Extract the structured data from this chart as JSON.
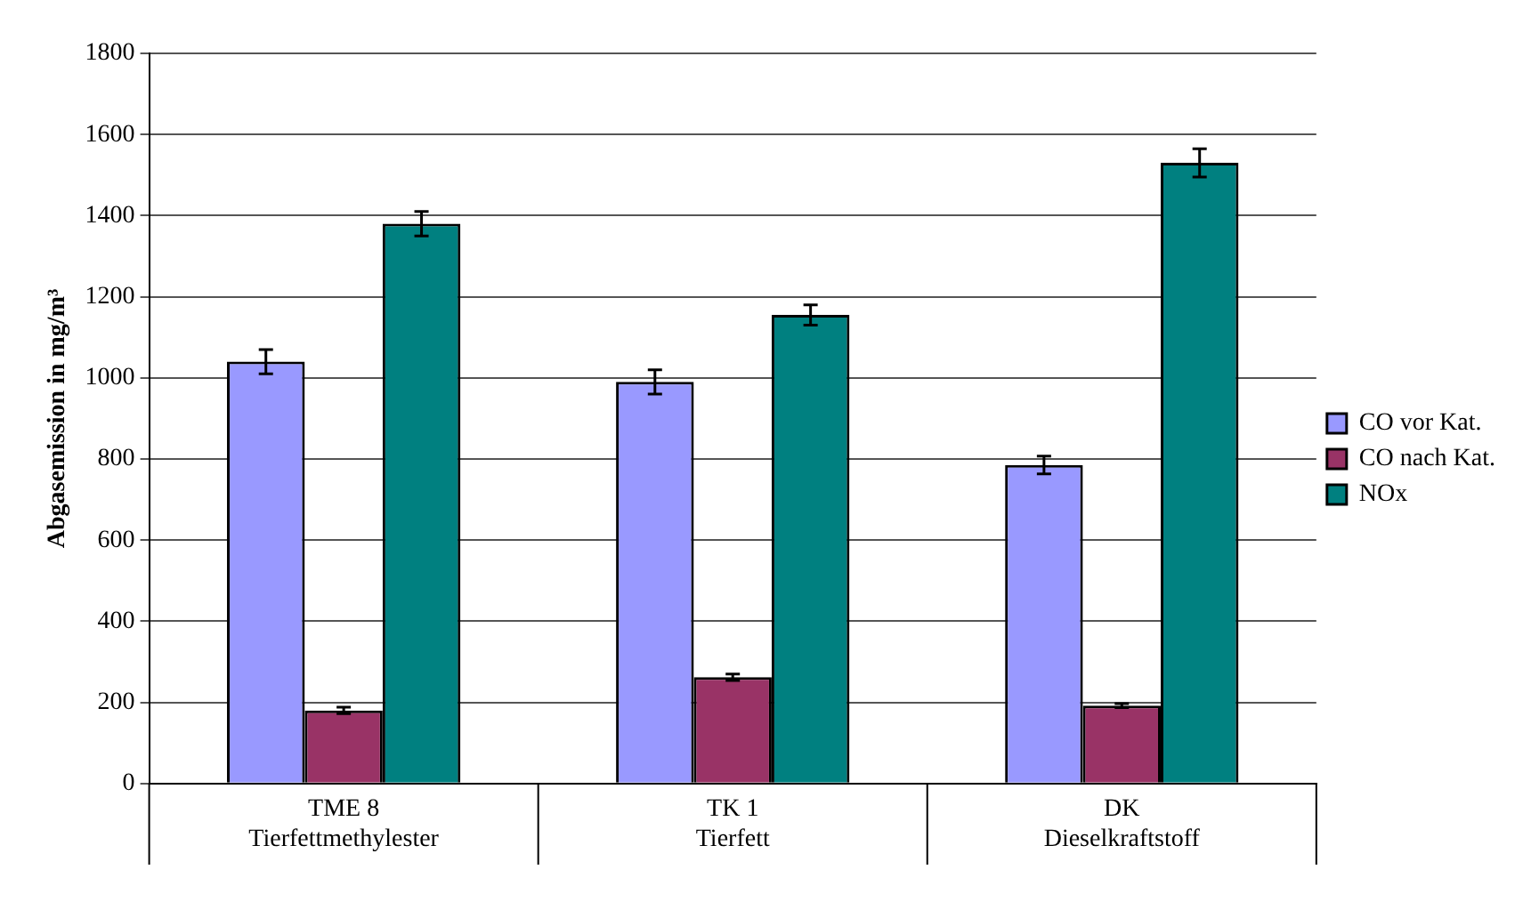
{
  "chart_data": {
    "type": "bar",
    "ylabel": "Abgasemission in mg/m³",
    "categories": [
      "TME 8\nTierfettmethylester",
      "TK 1\nTierfett",
      "DK\nDieselkraftstoff"
    ],
    "series": [
      {
        "name": "CO vor Kat.",
        "color": "#9999ff",
        "values": [
          1040,
          990,
          785
        ],
        "errors": [
          30,
          30,
          22
        ]
      },
      {
        "name": "CO nach Kat.",
        "color": "#993366",
        "values": [
          180,
          262,
          192
        ],
        "errors": [
          8,
          8,
          5
        ]
      },
      {
        "name": "NOx",
        "color": "#008080",
        "values": [
          1380,
          1155,
          1530
        ],
        "errors": [
          30,
          25,
          35
        ]
      }
    ],
    "ylim": [
      0,
      1800
    ],
    "yticks": [
      0,
      200,
      400,
      600,
      800,
      1000,
      1200,
      1400,
      1600,
      1800
    ],
    "grid": "y",
    "legend": "right"
  }
}
